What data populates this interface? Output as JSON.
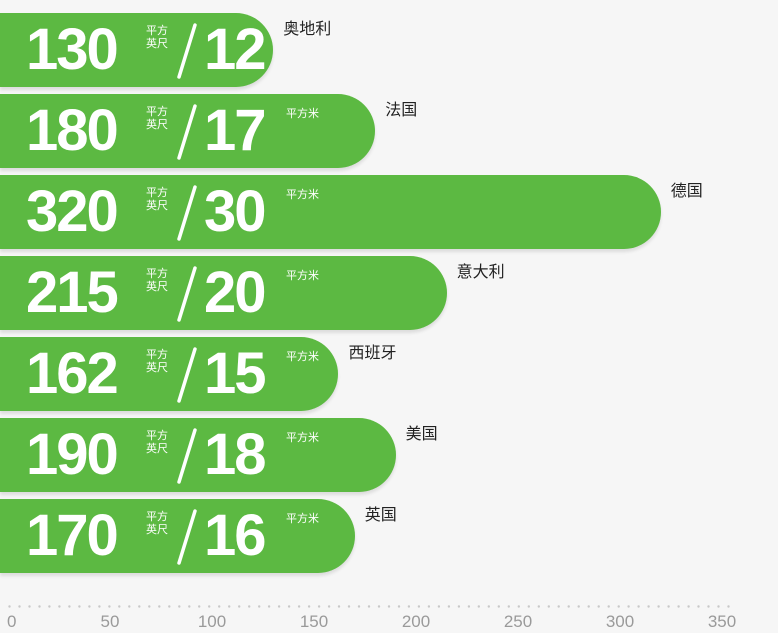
{
  "chart_data": {
    "type": "bar",
    "orientation": "horizontal",
    "categories": [
      "奥地利",
      "法国",
      "德国",
      "意大利",
      "西班牙",
      "美国",
      "英国"
    ],
    "series": [
      {
        "values": [
          130,
          180,
          320,
          215,
          162,
          190,
          170
        ]
      }
    ],
    "secondary_values": [
      12,
      17,
      30,
      20,
      15,
      18,
      16
    ],
    "primary_unit": "平方英尺",
    "secondary_unit": "平方米",
    "x_ticks": [
      "0",
      "50",
      "100",
      "150",
      "200",
      "250",
      "300",
      "350"
    ],
    "xlim": [
      0,
      350
    ],
    "grid": false,
    "colors": {
      "bar": "#5cb942",
      "text_on_bar": "#ffffff",
      "label": "#222222",
      "tick": "#9a9a9a",
      "background": "#f6f6f6"
    }
  }
}
